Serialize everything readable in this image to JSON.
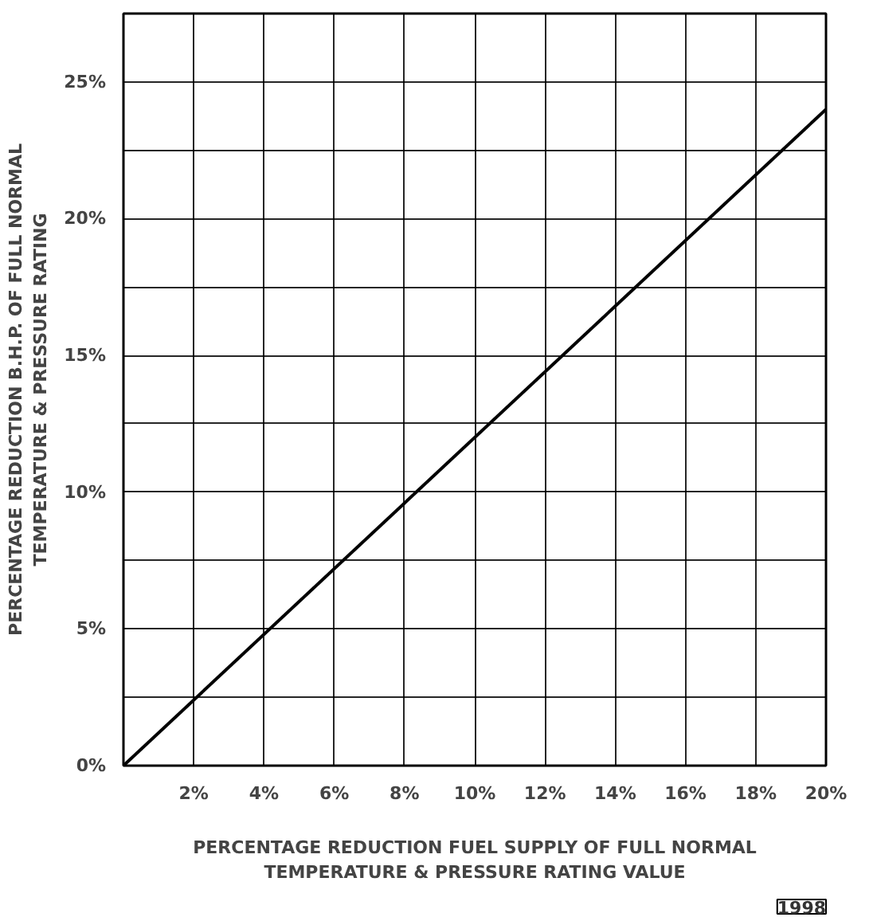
{
  "chart_data": {
    "type": "line",
    "xlabel": "PERCENTAGE REDUCTION FUEL SUPPLY OF FULL NORMAL\nTEMPERATURE & PRESSURE RATING VALUE",
    "ylabel": "PERCENTAGE REDUCTION B.H.P. OF FULL NORMAL\nTEMPERATURE & PRESSURE RATING",
    "x": [
      0,
      20
    ],
    "series": [
      {
        "color": "#000000",
        "values": [
          0,
          24
        ]
      }
    ],
    "xlim": [
      0,
      20
    ],
    "ylim": [
      0,
      27.5
    ],
    "xticks": [
      {
        "value": 2,
        "label": "2%"
      },
      {
        "value": 4,
        "label": "4%"
      },
      {
        "value": 6,
        "label": "6%"
      },
      {
        "value": 8,
        "label": "8%"
      },
      {
        "value": 10,
        "label": "10%"
      },
      {
        "value": 12,
        "label": "12%"
      },
      {
        "value": 14,
        "label": "14%"
      },
      {
        "value": 16,
        "label": "16%"
      },
      {
        "value": 18,
        "label": "18%"
      },
      {
        "value": 20,
        "label": "20%"
      }
    ],
    "yticks": [
      {
        "value": 0,
        "label": "0%"
      },
      {
        "value": 2.5,
        "label": null
      },
      {
        "value": 5,
        "label": "5%"
      },
      {
        "value": 7.5,
        "label": null
      },
      {
        "value": 10,
        "label": "10%"
      },
      {
        "value": 12.5,
        "label": null
      },
      {
        "value": 15,
        "label": "15%"
      },
      {
        "value": 17.5,
        "label": null
      },
      {
        "value": 20,
        "label": "20%"
      },
      {
        "value": 22.5,
        "label": null
      },
      {
        "value": 25,
        "label": "25%"
      }
    ],
    "grid": true,
    "marker": "none",
    "line_style": "solid",
    "annotations": [
      "1998"
    ]
  }
}
